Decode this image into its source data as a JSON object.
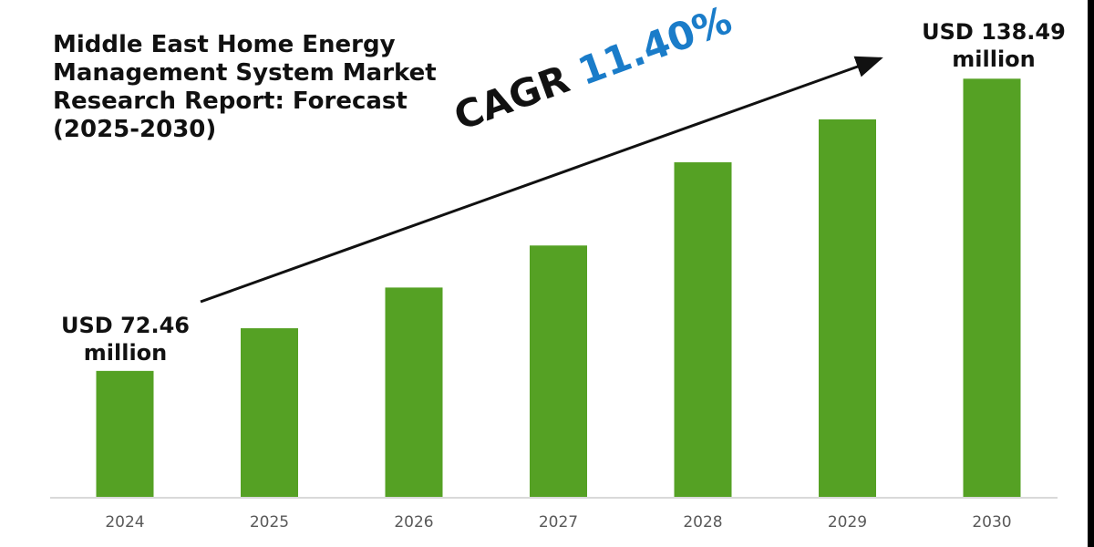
{
  "chart_data": {
    "type": "bar",
    "title": "Middle East Home Energy Management System Market Research Report: Forecast (2025-2030)",
    "categories": [
      "2024",
      "2025",
      "2026",
      "2027",
      "2028",
      "2029",
      "2030"
    ],
    "values": [
      72.46,
      82.1,
      91.3,
      100.8,
      119.6,
      129.3,
      138.49
    ],
    "ylim": [
      44,
      140
    ],
    "grid": false,
    "bar_color": "#55a124",
    "annotations": {
      "start_label": {
        "line1": "USD 72.46",
        "line2": "million"
      },
      "end_label": {
        "line1": "USD 138.49",
        "line2": "million"
      },
      "cagr_prefix": "CAGR",
      "cagr_value": "11.40%",
      "cagr_color": "#1a7cc9"
    }
  }
}
